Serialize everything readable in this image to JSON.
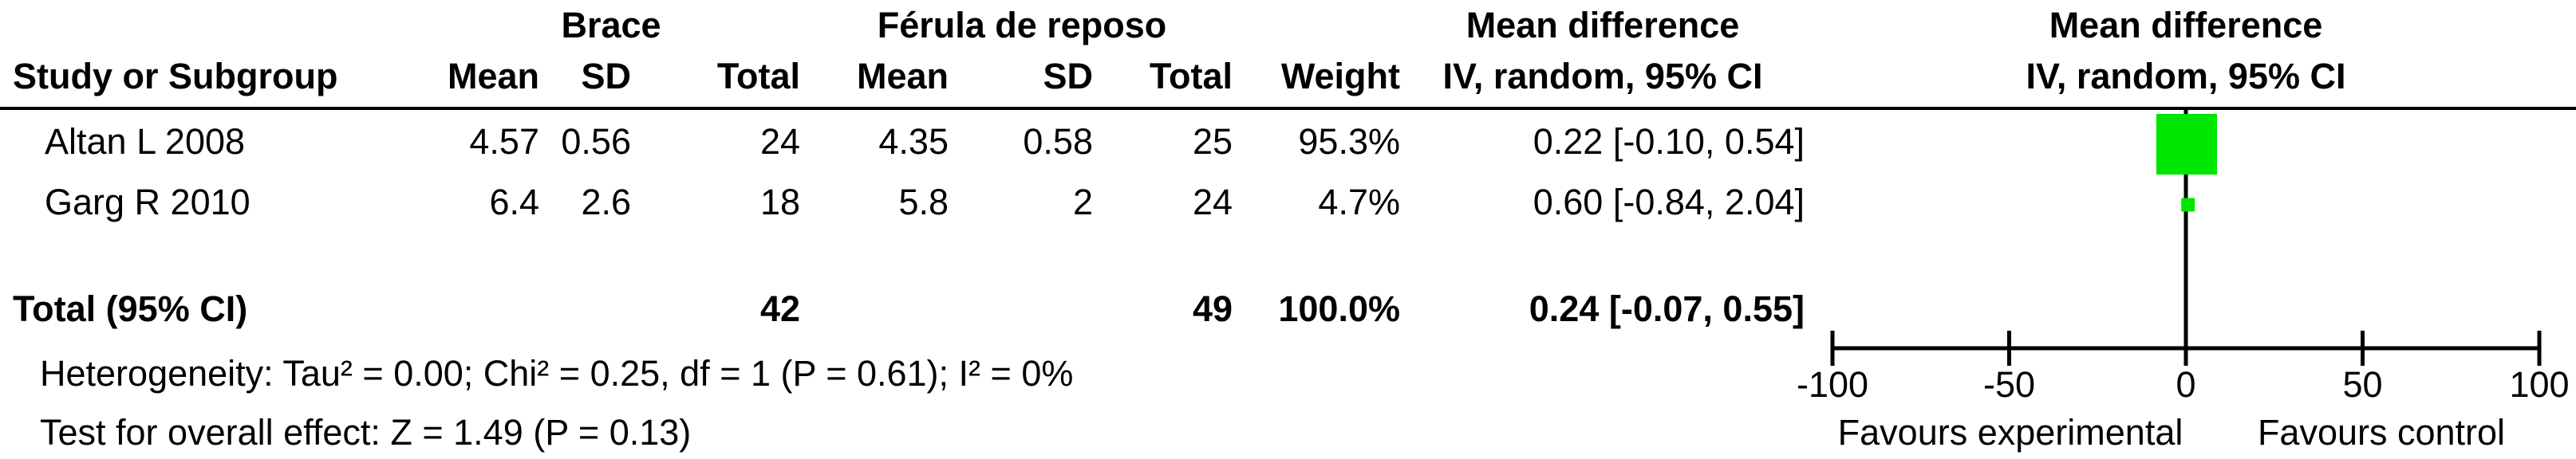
{
  "chart_data": {
    "type": "forest",
    "group_headers": [
      "Brace",
      "Férula de reposo"
    ],
    "effect_header": [
      "Mean difference",
      "IV, random, 95% CI"
    ],
    "plot_header": [
      "Mean difference",
      "IV, random, 95% CI"
    ],
    "columns": [
      "Study or Subgroup",
      "Mean",
      "SD",
      "Total",
      "Mean",
      "SD",
      "Total",
      "Weight"
    ],
    "studies": [
      {
        "name": "Altan L 2008",
        "brace_mean": 4.57,
        "brace_sd": 0.56,
        "brace_total": 24,
        "ferula_mean": 4.35,
        "ferula_sd": 0.58,
        "ferula_total": 25,
        "weight": {
          "value": 95.3,
          "label": "95.3%"
        },
        "md": 0.22,
        "ci": [
          -0.1,
          0.54
        ],
        "effect_label": "0.22 [-0.10, 0.54]"
      },
      {
        "name": "Garg R 2010",
        "brace_mean": 6.4,
        "brace_sd": 2.6,
        "brace_total": 18,
        "ferula_mean": 5.8,
        "ferula_sd": 2,
        "ferula_total": 24,
        "weight": {
          "value": 4.7,
          "label": "4.7%"
        },
        "md": 0.6,
        "ci": [
          -0.84,
          2.04
        ],
        "effect_label": "0.60 [-0.84, 2.04]"
      }
    ],
    "total": {
      "name": "Total (95% CI)",
      "brace_total": 42,
      "ferula_total": 49,
      "weight": {
        "value": 100.0,
        "label": "100.0%"
      },
      "md": 0.24,
      "ci": [
        -0.07,
        0.55
      ],
      "effect_label": "0.24 [-0.07, 0.55]"
    },
    "heterogeneity": "Heterogeneity: Tau² = 0.00; Chi² = 0.25, df = 1 (P = 0.61); I² = 0%",
    "overall_effect": "Test for overall effect: Z = 1.49 (P = 0.13)",
    "xlim": [
      -100,
      100
    ],
    "xticks": [
      -100,
      -50,
      0,
      50,
      100
    ],
    "xlabels": [
      "Favours experimental",
      "Favours control"
    ],
    "color": "#00e600"
  }
}
